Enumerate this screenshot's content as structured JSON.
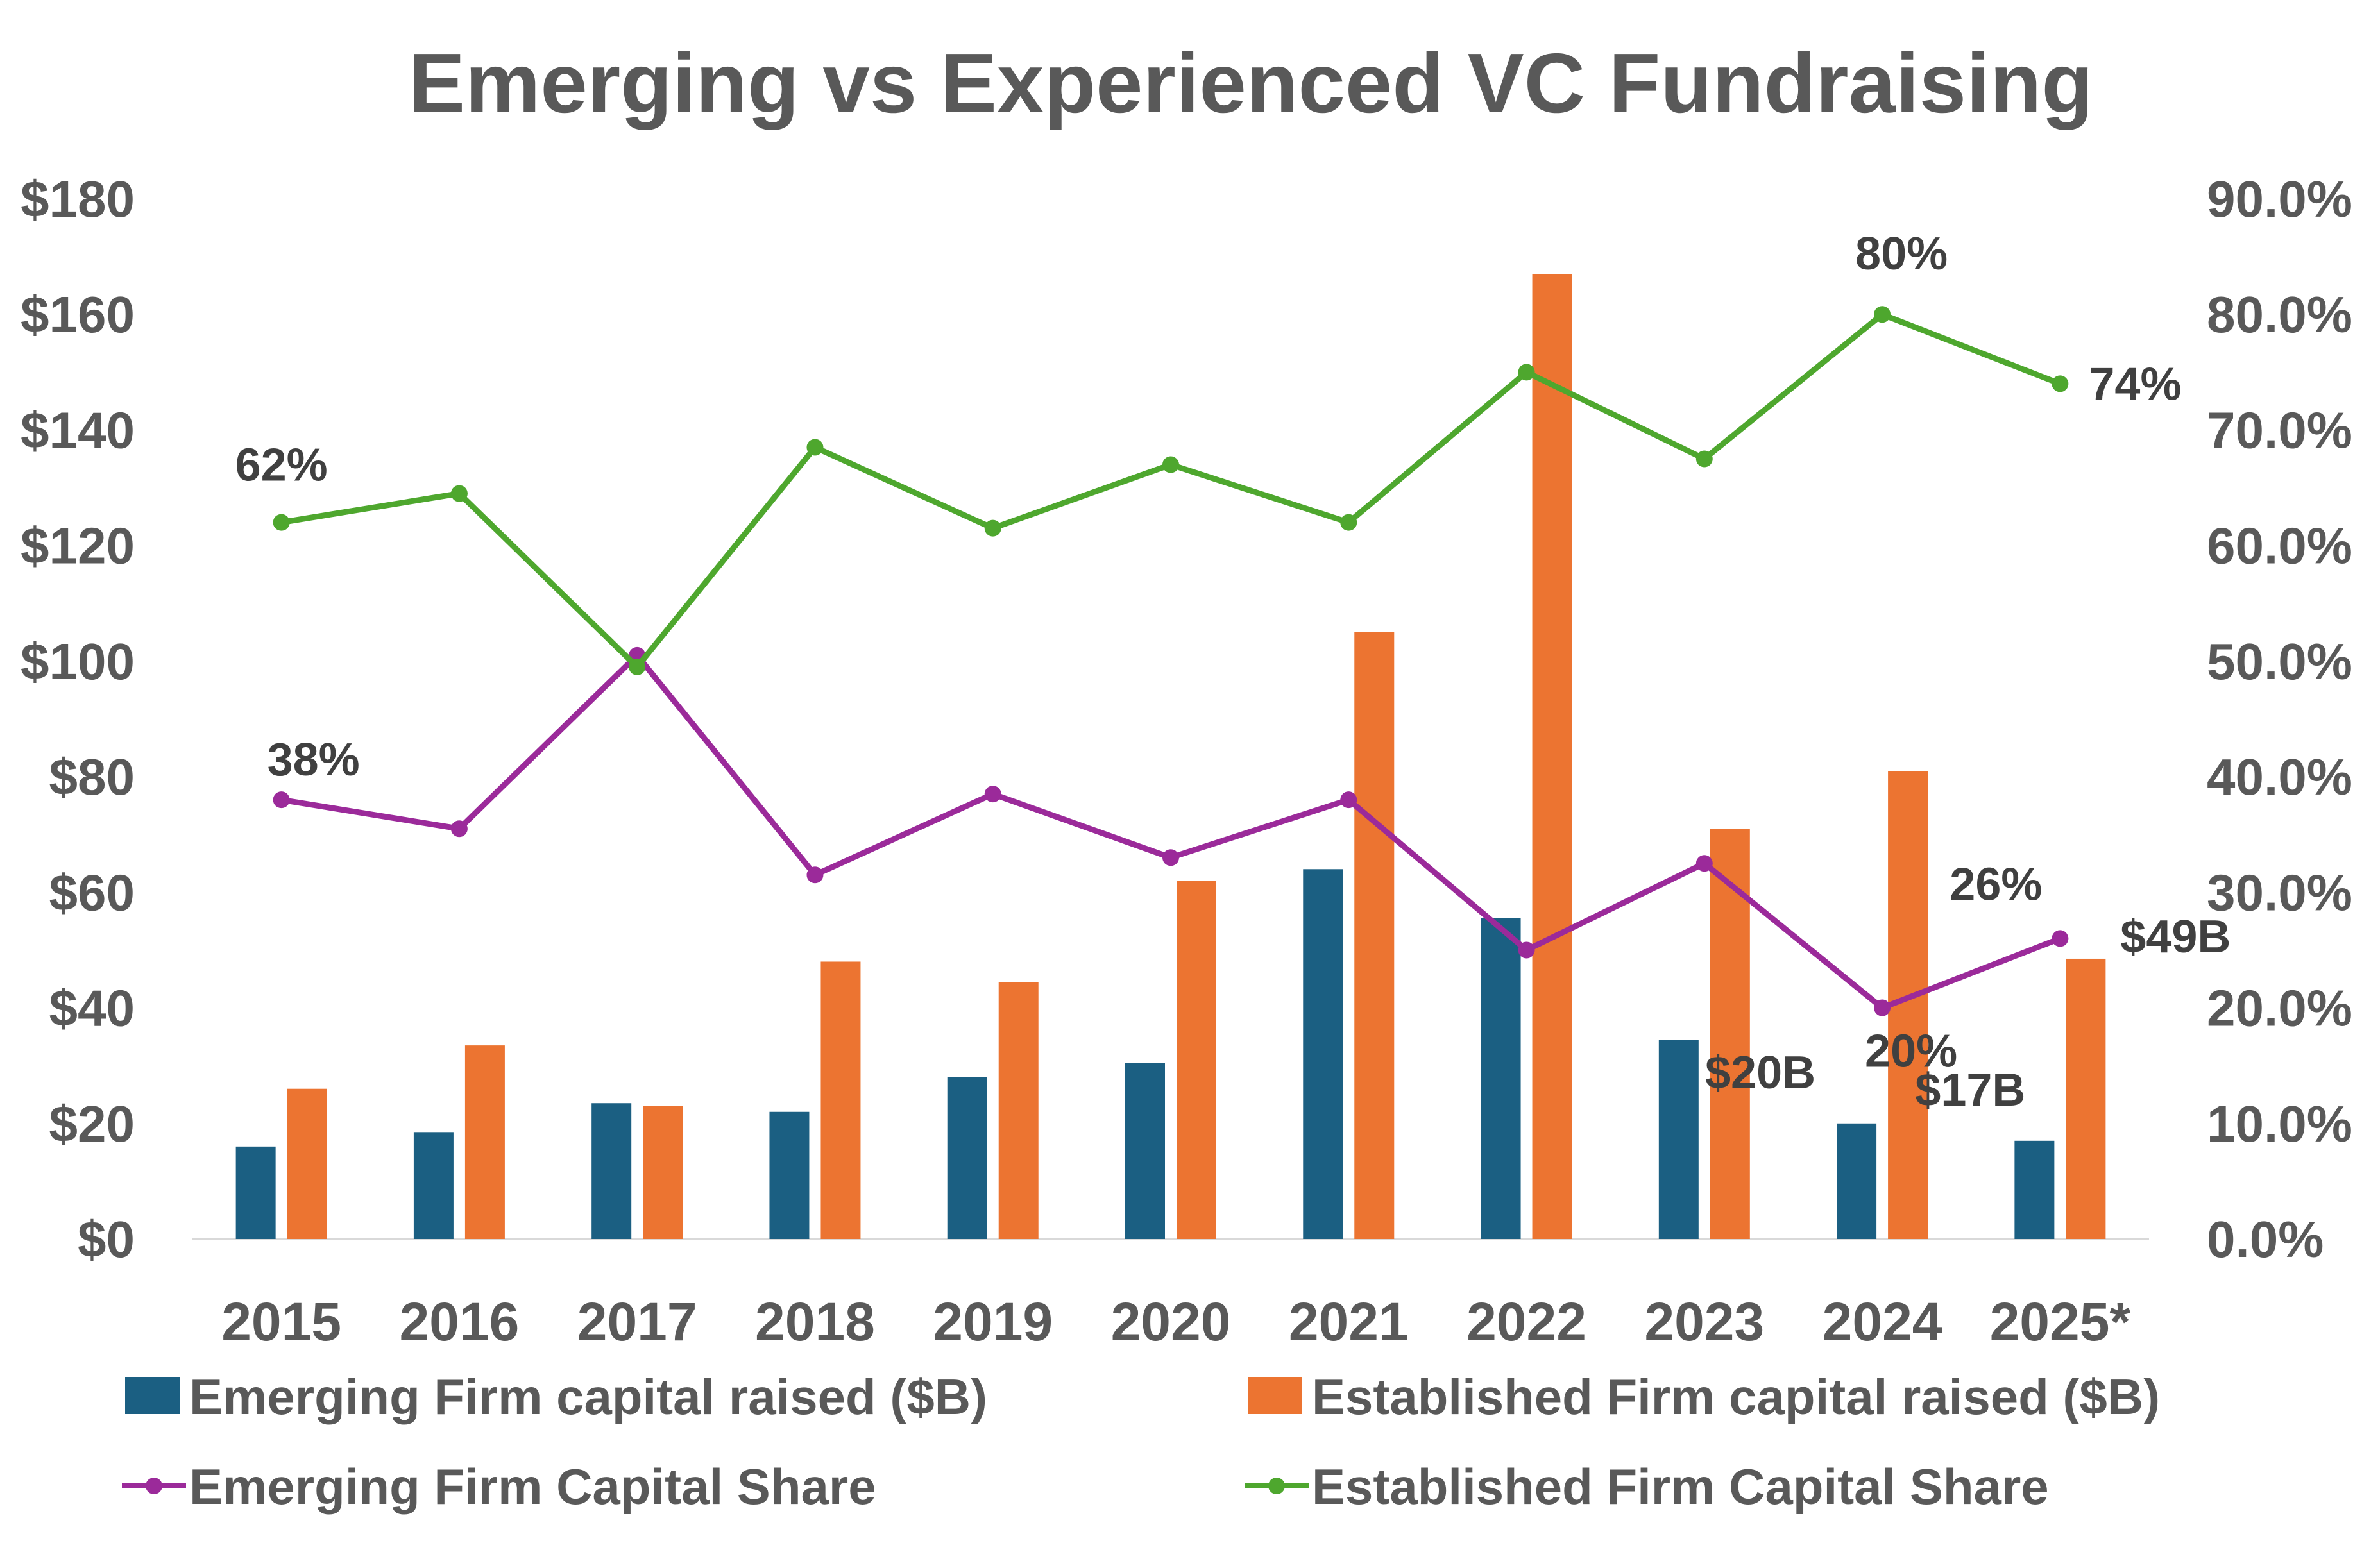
{
  "chart_data": {
    "type": "bar",
    "title": "Emerging vs Experienced VC Fundraising",
    "categories": [
      "2015",
      "2016",
      "2017",
      "2018",
      "2019",
      "2020",
      "2021",
      "2022",
      "2023",
      "2024",
      "2025*"
    ],
    "y_left": {
      "ylim": [
        0,
        180
      ],
      "ticks": [
        0,
        20,
        40,
        60,
        80,
        100,
        120,
        140,
        160,
        180
      ],
      "tick_labels": [
        "$0",
        "$20",
        "$40",
        "$60",
        "$80",
        "$100",
        "$120",
        "$140",
        "$160",
        "$180"
      ]
    },
    "y_right": {
      "ylim": [
        0,
        90
      ],
      "ticks": [
        0,
        10,
        20,
        30,
        40,
        50,
        60,
        70,
        80,
        90
      ],
      "tick_labels": [
        "0.0%",
        "10.0%",
        "20.0%",
        "30.0%",
        "40.0%",
        "50.0%",
        "60.0%",
        "70.0%",
        "80.0%",
        "90.0%"
      ]
    },
    "series": [
      {
        "name": "Emerging Firm capital raised ($B)",
        "kind": "bar",
        "axis": "left",
        "color": "#1b5f82",
        "values": [
          16,
          18.5,
          23.5,
          22,
          28,
          30.5,
          64,
          55.5,
          34.5,
          20,
          17
        ]
      },
      {
        "name": "Established Firm capital raised ($B)",
        "kind": "bar",
        "axis": "left",
        "color": "#ec7431",
        "values": [
          26,
          33.5,
          23,
          48,
          44.5,
          62,
          105,
          167,
          71,
          81,
          48.5
        ]
      },
      {
        "name": "Emerging Firm Capital Share",
        "kind": "line",
        "axis": "right",
        "color": "#9b2a9a",
        "values": [
          38,
          35.5,
          50.5,
          31.5,
          38.5,
          33,
          38,
          25,
          32.5,
          20,
          26
        ]
      },
      {
        "name": "Established Firm Capital Share",
        "kind": "line",
        "axis": "right",
        "color": "#4ea72e",
        "values": [
          62,
          64.5,
          49.5,
          68.5,
          61.5,
          67,
          62,
          75,
          67.5,
          80,
          74
        ]
      }
    ],
    "data_labels": [
      {
        "text": "62%",
        "series": 3,
        "index": 0
      },
      {
        "text": "80%",
        "series": 3,
        "index": 9
      },
      {
        "text": "74%",
        "series": 3,
        "index": 10
      },
      {
        "text": "38%",
        "series": 2,
        "index": 0
      },
      {
        "text": "20%",
        "series": 2,
        "index": 9
      },
      {
        "text": "26%",
        "series": 2,
        "index": 10
      },
      {
        "text": "$20B",
        "series": 0,
        "index": 9
      },
      {
        "text": "$17B",
        "series": 0,
        "index": 10
      },
      {
        "text": "$49B",
        "series": 1,
        "index": 10
      }
    ],
    "legend_position": "bottom"
  }
}
